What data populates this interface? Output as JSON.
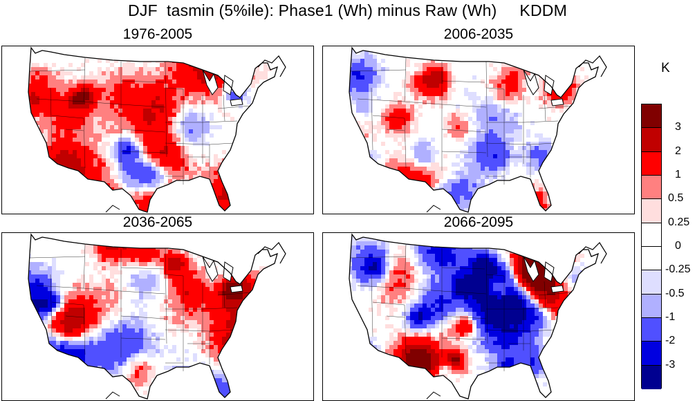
{
  "title": "DJF  tasmin (5%ile): Phase1 (Wh) minus Raw (Wh)     KDDM",
  "panels": [
    {
      "id": "p1",
      "label": "1976-2005"
    },
    {
      "id": "p2",
      "label": "2006-2035"
    },
    {
      "id": "p3",
      "label": "2036-2065"
    },
    {
      "id": "p4",
      "label": "2066-2095"
    }
  ],
  "colorbar": {
    "unit": "K",
    "colors": [
      "#800000",
      "#c00000",
      "#ff0000",
      "#ff8080",
      "#ffdede",
      "#ffffff",
      "#ffffff",
      "#dedeff",
      "#b0b0ff",
      "#5050ff",
      "#0000e0",
      "#000090"
    ],
    "labels": [
      "3",
      "2",
      "1",
      "0.5",
      "0.25",
      "0",
      "-0.25",
      "-0.5",
      "-1",
      "-2",
      "-3"
    ]
  }
}
